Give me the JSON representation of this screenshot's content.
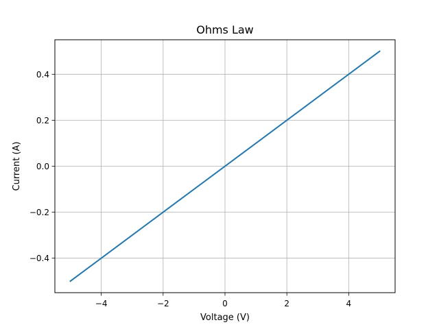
{
  "chart_data": {
    "type": "line",
    "title": "Ohms Law",
    "xlabel": "Voltage (V)",
    "ylabel": "Current (A)",
    "xlim": [
      -5.5,
      5.5
    ],
    "ylim": [
      -0.55,
      0.55
    ],
    "grid": true,
    "x_ticks": [
      -4,
      -2,
      0,
      2,
      4
    ],
    "x_tick_labels": [
      "−4",
      "−2",
      "0",
      "2",
      "4"
    ],
    "y_ticks": [
      -0.4,
      -0.2,
      0.0,
      0.2,
      0.4
    ],
    "y_tick_labels": [
      "−0.4",
      "−0.2",
      "0.0",
      "0.2",
      "0.4"
    ],
    "series": [
      {
        "color": "#1f77b4",
        "x": [
          -5,
          5
        ],
        "y": [
          -0.5,
          0.5
        ]
      }
    ]
  }
}
